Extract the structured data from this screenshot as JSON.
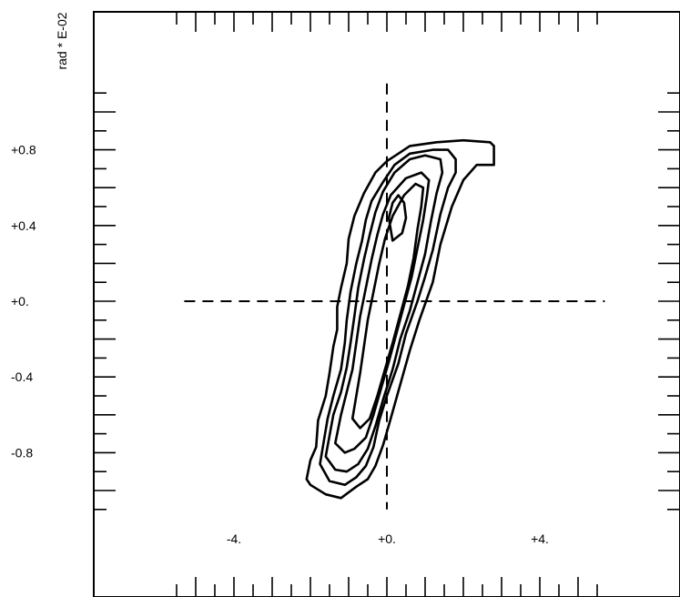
{
  "chart_data": {
    "type": "contour",
    "title": "",
    "xlabel": "",
    "ylabel": "rad * E-02",
    "xlim": [
      -7.5,
      7.5
    ],
    "ylim": [
      -1.6,
      1.6
    ],
    "x_ticks": [
      {
        "value": -4,
        "label": "-4."
      },
      {
        "value": 0,
        "label": "+0."
      },
      {
        "value": 4,
        "label": "+4."
      }
    ],
    "y_ticks": [
      {
        "value": 0.8,
        "label": "+0.8"
      },
      {
        "value": 0.4,
        "label": "+0.4"
      },
      {
        "value": 0,
        "label": "+0."
      },
      {
        "value": -0.4,
        "label": "-0.4"
      },
      {
        "value": -0.8,
        "label": "-0.8"
      }
    ],
    "reference_lines": [
      {
        "orientation": "vertical",
        "value": 0,
        "from": -1.1,
        "to": 1.15,
        "style": "dashed"
      },
      {
        "orientation": "horizontal",
        "value": 0,
        "from": -5.3,
        "to": 5.7,
        "style": "dashed"
      }
    ],
    "contour_levels": [
      {
        "level": 1,
        "points": [
          [
            -2.1,
            -0.94
          ],
          [
            -2.0,
            -0.97
          ],
          [
            -1.6,
            -1.02
          ],
          [
            -1.2,
            -1.04
          ],
          [
            -0.8,
            -0.98
          ],
          [
            -0.5,
            -0.94
          ],
          [
            -0.3,
            -0.87
          ],
          [
            -0.1,
            -0.76
          ],
          [
            0.1,
            -0.62
          ],
          [
            0.35,
            -0.44
          ],
          [
            0.6,
            -0.26
          ],
          [
            0.85,
            -0.1
          ],
          [
            1.2,
            0.1
          ],
          [
            1.4,
            0.3
          ],
          [
            1.7,
            0.5
          ],
          [
            2.0,
            0.64
          ],
          [
            2.35,
            0.72
          ],
          [
            2.8,
            0.72
          ],
          [
            2.8,
            0.82
          ],
          [
            2.7,
            0.84
          ],
          [
            2.0,
            0.85
          ],
          [
            1.3,
            0.84
          ],
          [
            0.6,
            0.82
          ],
          [
            0.3,
            0.78
          ],
          [
            0,
            0.74
          ],
          [
            -0.3,
            0.68
          ],
          [
            -0.6,
            0.57
          ],
          [
            -0.85,
            0.45
          ],
          [
            -1.0,
            0.33
          ],
          [
            -1.05,
            0.2
          ],
          [
            -1.2,
            0.07
          ],
          [
            -1.3,
            -0.03
          ],
          [
            -1.3,
            -0.15
          ],
          [
            -1.4,
            -0.24
          ],
          [
            -1.5,
            -0.38
          ],
          [
            -1.6,
            -0.5
          ],
          [
            -1.8,
            -0.63
          ],
          [
            -1.85,
            -0.77
          ],
          [
            -2.0,
            -0.84
          ],
          [
            -2.1,
            -0.94
          ]
        ]
      },
      {
        "level": 2,
        "points": [
          [
            -1.75,
            -0.86
          ],
          [
            -1.5,
            -0.95
          ],
          [
            -1.1,
            -0.97
          ],
          [
            -0.8,
            -0.93
          ],
          [
            -0.55,
            -0.87
          ],
          [
            -0.35,
            -0.77
          ],
          [
            -0.2,
            -0.63
          ],
          [
            0,
            -0.5
          ],
          [
            0.3,
            -0.33
          ],
          [
            0.5,
            -0.17
          ],
          [
            0.8,
            0.0
          ],
          [
            1.0,
            0.13
          ],
          [
            1.2,
            0.27
          ],
          [
            1.4,
            0.46
          ],
          [
            1.6,
            0.6
          ],
          [
            1.8,
            0.68
          ],
          [
            1.8,
            0.75
          ],
          [
            1.6,
            0.8
          ],
          [
            1.2,
            0.8
          ],
          [
            0.6,
            0.78
          ],
          [
            0.2,
            0.72
          ],
          [
            -0.1,
            0.63
          ],
          [
            -0.4,
            0.53
          ],
          [
            -0.55,
            0.43
          ],
          [
            -0.65,
            0.32
          ],
          [
            -0.8,
            0.2
          ],
          [
            -0.95,
            0.05
          ],
          [
            -1.05,
            -0.1
          ],
          [
            -1.1,
            -0.22
          ],
          [
            -1.2,
            -0.36
          ],
          [
            -1.4,
            -0.5
          ],
          [
            -1.55,
            -0.62
          ],
          [
            -1.65,
            -0.74
          ],
          [
            -1.75,
            -0.86
          ]
        ]
      },
      {
        "level": 3,
        "points": [
          [
            -1.6,
            -0.82
          ],
          [
            -1.35,
            -0.89
          ],
          [
            -1.05,
            -0.9
          ],
          [
            -0.75,
            -0.86
          ],
          [
            -0.5,
            -0.78
          ],
          [
            -0.3,
            -0.66
          ],
          [
            -0.1,
            -0.52
          ],
          [
            0.15,
            -0.36
          ],
          [
            0.35,
            -0.2
          ],
          [
            0.6,
            -0.05
          ],
          [
            0.8,
            0.1
          ],
          [
            1.0,
            0.25
          ],
          [
            1.15,
            0.42
          ],
          [
            1.3,
            0.57
          ],
          [
            1.45,
            0.68
          ],
          [
            1.4,
            0.75
          ],
          [
            1.0,
            0.77
          ],
          [
            0.6,
            0.75
          ],
          [
            0.2,
            0.68
          ],
          [
            -0.1,
            0.58
          ],
          [
            -0.3,
            0.47
          ],
          [
            -0.45,
            0.35
          ],
          [
            -0.6,
            0.22
          ],
          [
            -0.75,
            0.07
          ],
          [
            -0.85,
            -0.08
          ],
          [
            -0.95,
            -0.22
          ],
          [
            -1.05,
            -0.35
          ],
          [
            -1.2,
            -0.48
          ],
          [
            -1.4,
            -0.6
          ],
          [
            -1.5,
            -0.71
          ],
          [
            -1.6,
            -0.82
          ]
        ]
      },
      {
        "level": 4,
        "points": [
          [
            -1.35,
            -0.75
          ],
          [
            -1.1,
            -0.8
          ],
          [
            -0.85,
            -0.78
          ],
          [
            -0.55,
            -0.72
          ],
          [
            -0.35,
            -0.6
          ],
          [
            -0.15,
            -0.46
          ],
          [
            0.05,
            -0.32
          ],
          [
            0.25,
            -0.17
          ],
          [
            0.45,
            -0.02
          ],
          [
            0.65,
            0.13
          ],
          [
            0.8,
            0.28
          ],
          [
            0.95,
            0.43
          ],
          [
            1.05,
            0.56
          ],
          [
            1.1,
            0.64
          ],
          [
            0.9,
            0.68
          ],
          [
            0.5,
            0.65
          ],
          [
            0.1,
            0.56
          ],
          [
            -0.1,
            0.46
          ],
          [
            -0.25,
            0.35
          ],
          [
            -0.4,
            0.22
          ],
          [
            -0.55,
            0.07
          ],
          [
            -0.7,
            -0.08
          ],
          [
            -0.8,
            -0.22
          ],
          [
            -0.9,
            -0.36
          ],
          [
            -1.05,
            -0.48
          ],
          [
            -1.2,
            -0.6
          ],
          [
            -1.35,
            -0.75
          ]
        ]
      },
      {
        "level": 5,
        "points": [
          [
            -0.9,
            -0.62
          ],
          [
            -0.7,
            -0.67
          ],
          [
            -0.45,
            -0.62
          ],
          [
            -0.25,
            -0.5
          ],
          [
            -0.05,
            -0.36
          ],
          [
            0.15,
            -0.22
          ],
          [
            0.35,
            -0.07
          ],
          [
            0.55,
            0.08
          ],
          [
            0.7,
            0.23
          ],
          [
            0.8,
            0.38
          ],
          [
            0.9,
            0.5
          ],
          [
            0.95,
            0.6
          ],
          [
            0.75,
            0.62
          ],
          [
            0.45,
            0.56
          ],
          [
            0.15,
            0.45
          ],
          [
            -0.05,
            0.33
          ],
          [
            -0.2,
            0.2
          ],
          [
            -0.35,
            0.05
          ],
          [
            -0.5,
            -0.1
          ],
          [
            -0.6,
            -0.24
          ],
          [
            -0.7,
            -0.38
          ],
          [
            -0.8,
            -0.5
          ],
          [
            -0.9,
            -0.62
          ]
        ]
      },
      {
        "level": 6,
        "points": [
          [
            0.15,
            0.32
          ],
          [
            0.4,
            0.36
          ],
          [
            0.5,
            0.44
          ],
          [
            0.45,
            0.52
          ],
          [
            0.3,
            0.56
          ],
          [
            0.15,
            0.52
          ],
          [
            0.05,
            0.44
          ],
          [
            0.15,
            0.32
          ]
        ]
      }
    ]
  }
}
